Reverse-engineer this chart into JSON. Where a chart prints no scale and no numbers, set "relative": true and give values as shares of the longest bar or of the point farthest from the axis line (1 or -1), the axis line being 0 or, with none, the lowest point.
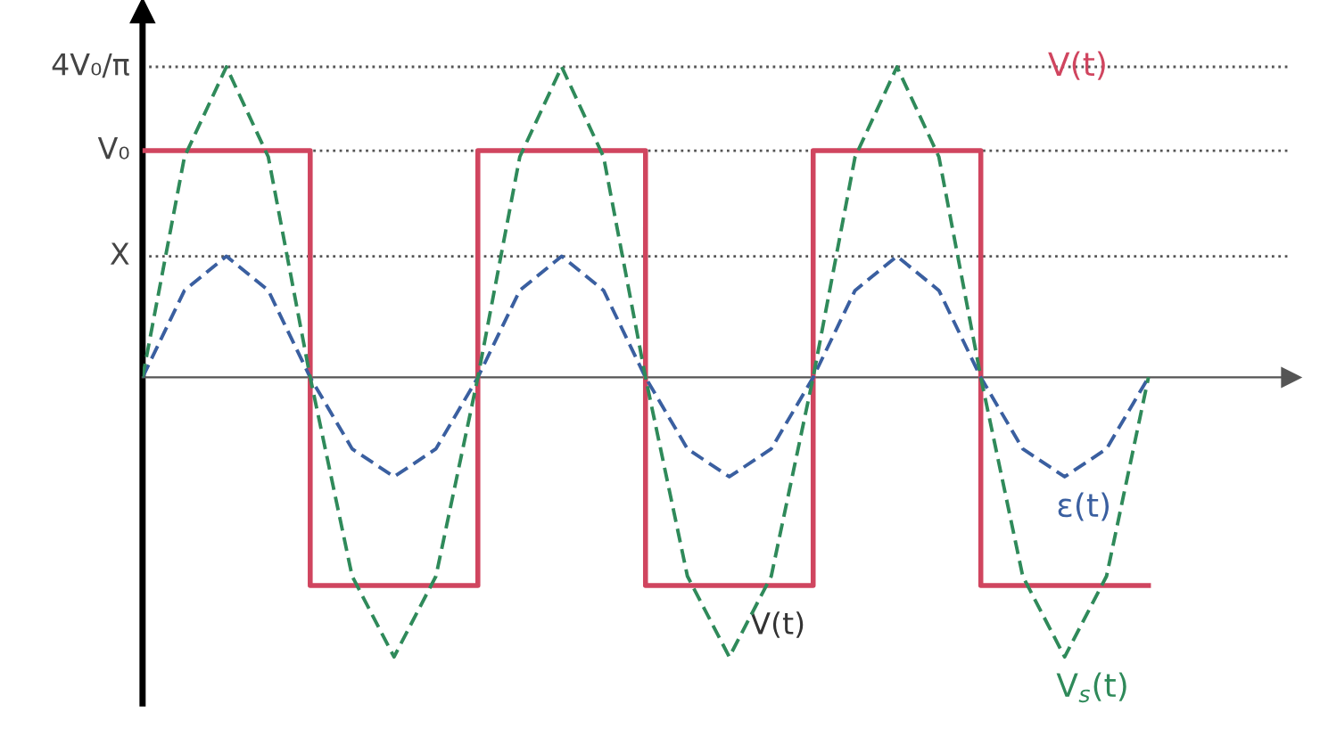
{
  "chart_data": {
    "type": "line",
    "relative": true,
    "categories": [
      null,
      null,
      null,
      null,
      null,
      null,
      null,
      null,
      null,
      null,
      null,
      null,
      null,
      null,
      null,
      null,
      null,
      null,
      null,
      null,
      null,
      null,
      null,
      null,
      null
    ],
    "series": [
      {
        "name": "V(t)",
        "type": "step",
        "color": "#d0455f",
        "line_style": "solid",
        "values": [
          0.73,
          0.73,
          0.73,
          0.73,
          -0.67,
          -0.67,
          -0.67,
          -0.67,
          0.73,
          0.73,
          0.73,
          0.73,
          -0.67,
          -0.67,
          -0.67,
          -0.67,
          0.73,
          0.73,
          0.73,
          0.73,
          -0.67,
          -0.67,
          -0.67,
          -0.67,
          -0.67
        ]
      },
      {
        "name": "ε(t)",
        "color": "#3a5fa0",
        "line_style": "dashed",
        "values": [
          0,
          0.28,
          0.39,
          0.28,
          0,
          -0.23,
          -0.32,
          -0.23,
          0,
          0.28,
          0.39,
          0.28,
          0,
          -0.23,
          -0.32,
          -0.23,
          0,
          0.28,
          0.39,
          0.28,
          0,
          -0.23,
          -0.32,
          -0.23,
          0
        ]
      },
      {
        "name": "V$_{s}$(t)",
        "color": "#2f8a5a",
        "line_style": "dashed",
        "values": [
          0,
          0.71,
          1,
          0.71,
          0,
          -0.64,
          -0.9,
          -0.64,
          0,
          0.71,
          1,
          0.71,
          0,
          -0.64,
          -0.9,
          -0.64,
          0,
          0.71,
          1,
          0.71,
          0,
          -0.64,
          -0.9,
          -0.64,
          0
        ]
      }
    ],
    "ref_lines": [
      {
        "axis": "y",
        "value": 1,
        "label": "4V₀/π",
        "color": "#555555",
        "line_style": "dotted"
      },
      {
        "axis": "y",
        "value": 0.73,
        "label": "V₀",
        "color": "#555555",
        "line_style": "dotted"
      },
      {
        "axis": "y",
        "value": 0.39,
        "label": "X",
        "color": "#555555",
        "line_style": "dotted"
      }
    ],
    "annotations": [
      "V(t)"
    ],
    "legend": false,
    "marker": "none"
  }
}
